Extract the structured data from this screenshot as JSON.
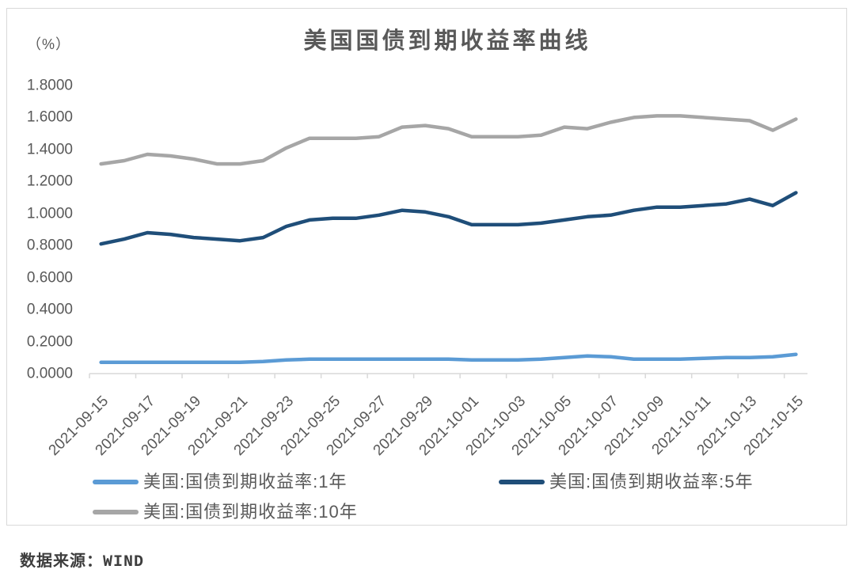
{
  "header": {
    "title": "美国国债到期收益率曲线",
    "unit_label": "（%）"
  },
  "footer": {
    "source_label": "数据来源：WIND"
  },
  "colors": {
    "text": "#595959",
    "axis": "#d9d9d9",
    "border": "#d9d9d9",
    "series_1y": "#5b9bd5",
    "series_5y": "#1f4e79",
    "series_10y": "#a6a6a6"
  },
  "chart_data": {
    "type": "line",
    "title": "美国国债到期收益率曲线",
    "unit": "%",
    "grid": false,
    "legend_position": "bottom",
    "ylim": [
      0.0,
      1.8
    ],
    "y_tick_step": 0.2,
    "y_tick_labels": [
      "1.8000",
      "1.6000",
      "1.4000",
      "1.2000",
      "1.0000",
      "0.8000",
      "0.6000",
      "0.4000",
      "0.2000",
      "0.0000"
    ],
    "x": [
      "2021-09-15",
      "2021-09-16",
      "2021-09-17",
      "2021-09-18",
      "2021-09-19",
      "2021-09-20",
      "2021-09-21",
      "2021-09-22",
      "2021-09-23",
      "2021-09-24",
      "2021-09-25",
      "2021-09-26",
      "2021-09-27",
      "2021-09-28",
      "2021-09-29",
      "2021-09-30",
      "2021-10-01",
      "2021-10-02",
      "2021-10-03",
      "2021-10-04",
      "2021-10-05",
      "2021-10-06",
      "2021-10-07",
      "2021-10-08",
      "2021-10-09",
      "2021-10-10",
      "2021-10-11",
      "2021-10-12",
      "2021-10-13",
      "2021-10-14",
      "2021-10-15"
    ],
    "x_tick_labels": [
      "2021-09-15",
      "2021-09-17",
      "2021-09-19",
      "2021-09-21",
      "2021-09-23",
      "2021-09-25",
      "2021-09-27",
      "2021-09-29",
      "2021-10-01",
      "2021-10-03",
      "2021-10-05",
      "2021-10-07",
      "2021-10-09",
      "2021-10-11",
      "2021-10-13",
      "2021-10-15"
    ],
    "series": [
      {
        "name": "美国:国债到期收益率:1年",
        "color": "#5b9bd5",
        "values": [
          0.07,
          0.07,
          0.07,
          0.07,
          0.07,
          0.07,
          0.07,
          0.075,
          0.085,
          0.09,
          0.09,
          0.09,
          0.09,
          0.09,
          0.09,
          0.09,
          0.085,
          0.085,
          0.085,
          0.09,
          0.1,
          0.11,
          0.105,
          0.09,
          0.09,
          0.09,
          0.095,
          0.1,
          0.1,
          0.105,
          0.12
        ]
      },
      {
        "name": "美国:国债到期收益率:5年",
        "color": "#1f4e79",
        "values": [
          0.81,
          0.84,
          0.88,
          0.87,
          0.85,
          0.84,
          0.83,
          0.85,
          0.92,
          0.96,
          0.97,
          0.97,
          0.99,
          1.02,
          1.01,
          0.98,
          0.93,
          0.93,
          0.93,
          0.94,
          0.96,
          0.98,
          0.99,
          1.02,
          1.04,
          1.04,
          1.05,
          1.06,
          1.09,
          1.05,
          1.13
        ]
      },
      {
        "name": "美国:国债到期收益率:10年",
        "color": "#a6a6a6",
        "values": [
          1.31,
          1.33,
          1.37,
          1.36,
          1.34,
          1.31,
          1.31,
          1.33,
          1.41,
          1.47,
          1.47,
          1.47,
          1.48,
          1.54,
          1.55,
          1.53,
          1.48,
          1.48,
          1.48,
          1.49,
          1.54,
          1.53,
          1.57,
          1.6,
          1.61,
          1.61,
          1.6,
          1.59,
          1.58,
          1.52,
          1.59
        ]
      }
    ]
  }
}
